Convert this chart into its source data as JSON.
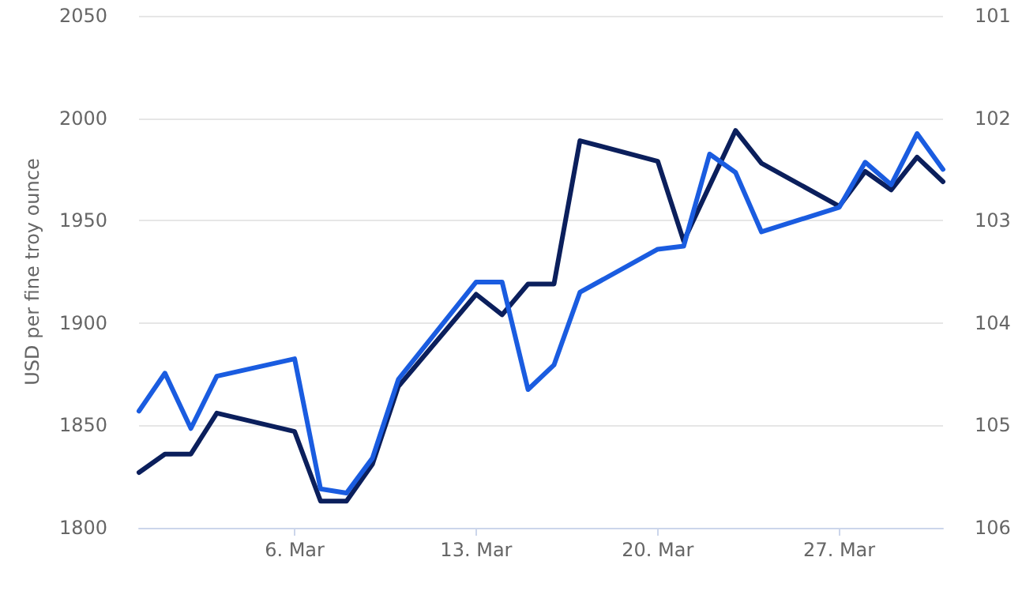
{
  "chart_data": {
    "type": "line",
    "ylabel": "USD per fine troy ounce",
    "x": [
      "--02-28",
      "--03-01",
      "--03-02",
      "--03-03",
      "--03-06",
      "--03-07",
      "--03-08",
      "--03-09",
      "--03-10",
      "--03-13",
      "--03-14",
      "--03-15",
      "--03-16",
      "--03-17",
      "--03-20",
      "--03-21",
      "--03-22",
      "--03-23",
      "--03-24",
      "--03-27",
      "--03-28",
      "--03-29",
      "--03-30",
      "--03-31"
    ],
    "series": [
      {
        "color": "#0b1f5c",
        "values": [
          1827,
          1836,
          1836,
          1856,
          1847,
          1813,
          1813,
          1831,
          1869,
          1914,
          1904,
          1919,
          1919,
          1989,
          1979,
          1940,
          1967,
          1994,
          1978,
          1957,
          1974,
          1965,
          1981,
          1969
        ]
      },
      {
        "color": "#1a5ce0",
        "axis": "y2",
        "values": [
          104.86,
          104.49,
          105.03,
          104.52,
          104.35,
          105.62,
          105.66,
          105.32,
          104.55,
          103.6,
          103.6,
          104.65,
          104.41,
          103.7,
          103.28,
          103.25,
          102.35,
          102.53,
          103.11,
          102.87,
          102.43,
          102.65,
          102.15,
          102.5
        ]
      }
    ],
    "xlim": [
      "--02-28",
      "--03-31"
    ],
    "xticks": [
      {
        "value": "--03-06",
        "label": "6. Mar"
      },
      {
        "value": "--03-13",
        "label": "13. Mar"
      },
      {
        "value": "--03-20",
        "label": "20. Mar"
      },
      {
        "value": "--03-27",
        "label": "27. Mar"
      }
    ],
    "ylim": [
      1800,
      2050
    ],
    "yticks": [
      1800,
      1850,
      1900,
      1950,
      2000,
      2050
    ],
    "y2lim": [
      106,
      101
    ],
    "y2ticks": [
      101,
      102,
      103,
      104,
      105,
      106
    ],
    "grid": "y",
    "marker": "none",
    "line_style": "solid"
  }
}
